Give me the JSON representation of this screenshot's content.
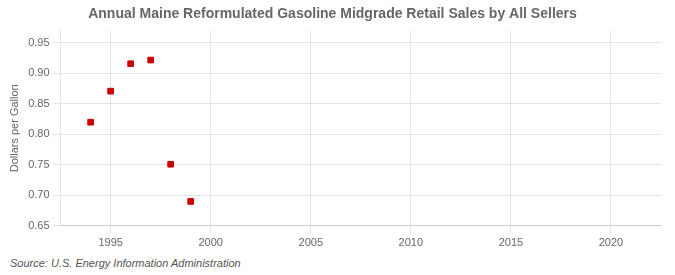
{
  "chart_data": {
    "type": "scatter",
    "title": "Annual Maine Reformulated Gasoline Midgrade Retail Sales by All Sellers",
    "y_label": "Dollars per Gallon",
    "annotation": "Source: U.S. Energy Information Administration",
    "x": [
      1994,
      1995,
      1996,
      1997,
      1998,
      1999
    ],
    "values": [
      0.82,
      0.871,
      0.916,
      0.922,
      0.751,
      0.69
    ],
    "color": "#cc0000",
    "marker": "square",
    "xlim": [
      1992.5,
      2022.5
    ],
    "ylim": [
      0.65,
      0.97
    ],
    "xticks": [
      1995,
      2000,
      2005,
      2010,
      2015,
      2020
    ],
    "yticks": [
      0.65,
      {
        "value": 0.7,
        "label": "0.70"
      },
      0.75,
      {
        "value": 0.8,
        "label": "0.80"
      },
      0.85,
      {
        "value": 0.9,
        "label": "0.90"
      },
      0.95
    ],
    "grid": true
  }
}
